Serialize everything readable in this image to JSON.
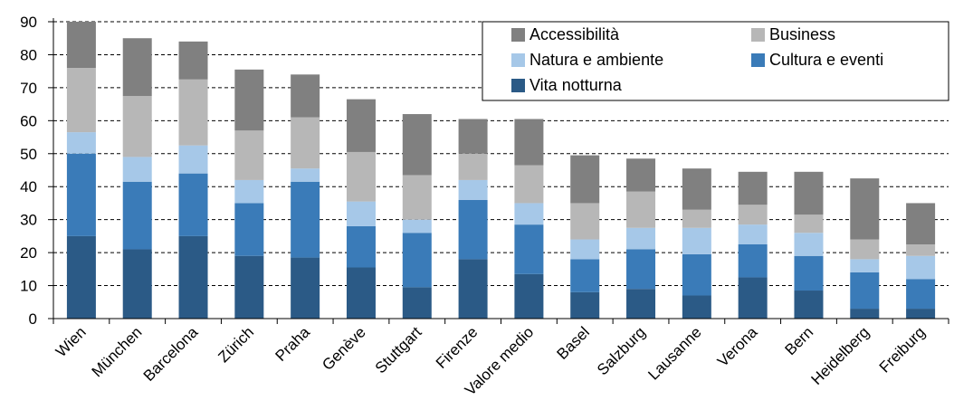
{
  "chart_data": {
    "type": "bar",
    "stacked": true,
    "categories": [
      "Wien",
      "München",
      "Barcelona",
      "Zürich",
      "Praha",
      "Genève",
      "Stuttgart",
      "Firenze",
      "Valore medio",
      "Basel",
      "Salzburg",
      "Lausanne",
      "Verona",
      "Bern",
      "Heidelberg",
      "Freiburg"
    ],
    "series": [
      {
        "name": "Vita notturna",
        "color": "#2b5a86",
        "values": [
          25,
          21,
          25,
          19,
          18.5,
          15.5,
          9.5,
          18,
          13.5,
          8,
          9,
          7,
          12.5,
          8.5,
          3,
          3
        ]
      },
      {
        "name": "Cultura e eventi",
        "color": "#3a7bb8",
        "values": [
          25,
          20.5,
          19,
          16,
          23,
          12.5,
          16.5,
          18,
          15,
          10,
          12,
          12.5,
          10,
          10.5,
          11,
          9
        ]
      },
      {
        "name": "Natura e ambiente",
        "color": "#a6c8e8",
        "values": [
          6.5,
          7.5,
          8.5,
          7,
          4,
          7.5,
          4,
          6,
          6.5,
          6,
          6.5,
          8,
          6,
          7,
          4,
          7
        ]
      },
      {
        "name": "Business",
        "color": "#b7b7b7",
        "values": [
          19.5,
          18.5,
          20,
          15,
          15.5,
          15,
          13.5,
          8,
          11.5,
          11,
          11,
          5.5,
          6,
          5.5,
          6,
          3.5
        ]
      },
      {
        "name": "Accessibilità",
        "color": "#808080",
        "values": [
          14,
          17.5,
          11.5,
          18.5,
          13,
          16,
          18.5,
          10.5,
          14,
          14.5,
          10,
          12.5,
          10,
          13,
          18.5,
          12.5
        ]
      }
    ],
    "yticks": [
      0,
      10,
      20,
      30,
      40,
      50,
      60,
      70,
      80,
      90
    ],
    "ylim": [
      0,
      90
    ],
    "grid": "horizontal dashed",
    "legend_position": "top-right",
    "legend_order": [
      "Accessibilità",
      "Business",
      "Natura e ambiente",
      "Cultura e eventi",
      "Vita notturna"
    ]
  }
}
